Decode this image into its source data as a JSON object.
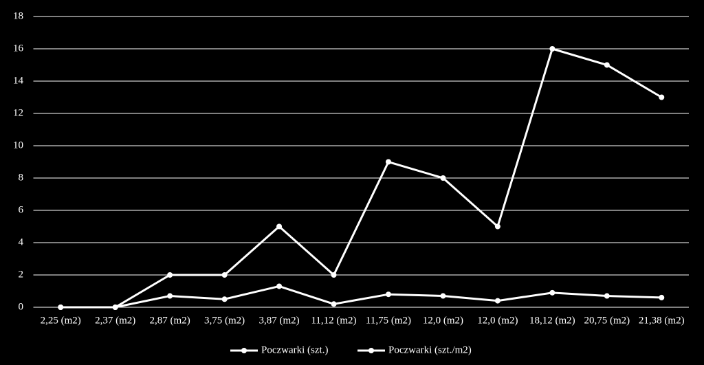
{
  "chart_data": {
    "type": "line",
    "categories": [
      "2,25 (m2)",
      "2,37 (m2)",
      "2,87 (m2)",
      "3,75 (m2)",
      "3,87 (m2)",
      "11,12 (m2)",
      "11,75 (m2)",
      "12,0 (m2)",
      "12,0 (m2)",
      "18,12 (m2)",
      "20,75 (m2)",
      "21,38 (m2)"
    ],
    "series": [
      {
        "name": "Poczwarki (szt.)",
        "color": "#ffffff",
        "values": [
          0,
          0,
          2,
          2,
          5,
          2,
          9,
          8,
          5,
          16,
          15,
          13
        ]
      },
      {
        "name": "Poczwarki (szt./m2)",
        "color": "#ffffff",
        "values": [
          0,
          0,
          0.7,
          0.5,
          1.3,
          0.2,
          0.8,
          0.7,
          0.4,
          0.9,
          0.7,
          0.6
        ]
      }
    ],
    "ylim": [
      0,
      18
    ],
    "yticks": [
      0,
      2,
      4,
      6,
      8,
      10,
      12,
      14,
      16,
      18
    ],
    "grid": true,
    "legend": "bottom"
  }
}
